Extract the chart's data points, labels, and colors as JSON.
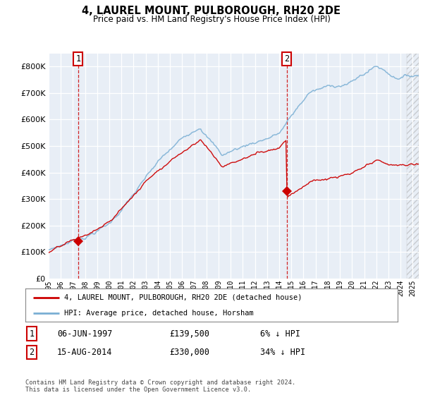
{
  "title": "4, LAUREL MOUNT, PULBOROUGH, RH20 2DE",
  "subtitle": "Price paid vs. HM Land Registry's House Price Index (HPI)",
  "legend_line1": "4, LAUREL MOUNT, PULBOROUGH, RH20 2DE (detached house)",
  "legend_line2": "HPI: Average price, detached house, Horsham",
  "annotation1_label": "1",
  "annotation1_date": "06-JUN-1997",
  "annotation1_price": "£139,500",
  "annotation1_hpi": "6% ↓ HPI",
  "annotation2_label": "2",
  "annotation2_date": "15-AUG-2014",
  "annotation2_price": "£330,000",
  "annotation2_hpi": "34% ↓ HPI",
  "footer": "Contains HM Land Registry data © Crown copyright and database right 2024.\nThis data is licensed under the Open Government Licence v3.0.",
  "hpi_color": "#7aafd4",
  "price_color": "#cc0000",
  "dot_color": "#cc0000",
  "annotation_color": "#cc0000",
  "background_plot": "#e8eef6",
  "background_fig": "#ffffff",
  "ylim": [
    0,
    850000
  ],
  "yticks": [
    0,
    100000,
    200000,
    300000,
    400000,
    500000,
    600000,
    700000,
    800000
  ],
  "sale1_x": 1997.43,
  "sale1_y": 139500,
  "sale2_x": 2014.62,
  "sale2_y": 330000,
  "xmin": 1995.0,
  "xmax": 2025.5
}
